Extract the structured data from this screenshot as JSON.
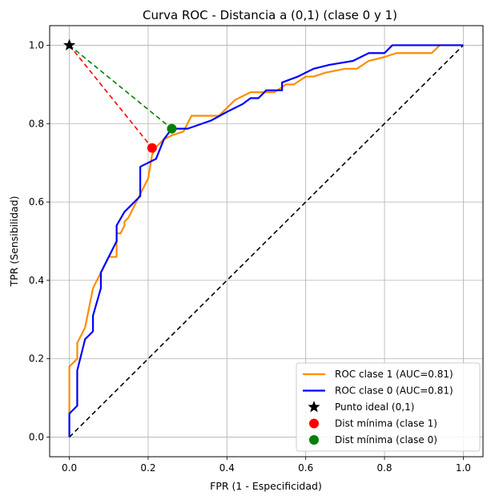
{
  "chart_data": {
    "type": "line",
    "title": "Curva ROC - Distancia a (0,1) (clase 0 y 1)",
    "xlabel": "FPR (1 - Especificidad)",
    "ylabel": "TPR (Sensibilidad)",
    "xlim": [
      -0.05,
      1.05
    ],
    "ylim": [
      -0.05,
      1.05
    ],
    "xticks": [
      "0.0",
      "0.2",
      "0.4",
      "0.6",
      "0.8",
      "1.0"
    ],
    "yticks": [
      "0.0",
      "0.2",
      "0.4",
      "0.6",
      "0.8",
      "1.0"
    ],
    "grid": true,
    "legend_position": "bottom-right",
    "series": [
      {
        "name": "ROC clase 1 (AUC=0.81)",
        "color": "#ff8c00",
        "x": [
          0,
          0,
          0.02,
          0.02,
          0.04,
          0.06,
          0.08,
          0.1,
          0.12,
          0.12,
          0.13,
          0.14,
          0.14,
          0.15,
          0.16,
          0.17,
          0.18,
          0.2,
          0.21,
          0.22,
          0.24,
          0.26,
          0.29,
          0.31,
          0.35,
          0.38,
          0.4,
          0.42,
          0.44,
          0.46,
          0.48,
          0.5,
          0.52,
          0.55,
          0.57,
          0.6,
          0.62,
          0.65,
          0.7,
          0.73,
          0.76,
          0.8,
          0.83,
          0.92,
          0.94,
          1.0
        ],
        "y": [
          0.06,
          0.18,
          0.2,
          0.24,
          0.28,
          0.38,
          0.42,
          0.46,
          0.46,
          0.52,
          0.52,
          0.54,
          0.55,
          0.56,
          0.58,
          0.6,
          0.62,
          0.66,
          0.72,
          0.74,
          0.76,
          0.77,
          0.78,
          0.82,
          0.82,
          0.82,
          0.84,
          0.86,
          0.87,
          0.88,
          0.88,
          0.88,
          0.88,
          0.9,
          0.9,
          0.92,
          0.92,
          0.93,
          0.94,
          0.94,
          0.96,
          0.97,
          0.98,
          0.98,
          1.0,
          1.0
        ]
      },
      {
        "name": "ROC clase 0 (AUC=0.81)",
        "color": "#0000ff",
        "x": [
          0,
          0,
          0.02,
          0.02,
          0.04,
          0.06,
          0.06,
          0.08,
          0.08,
          0.12,
          0.12,
          0.14,
          0.16,
          0.18,
          0.18,
          0.22,
          0.24,
          0.26,
          0.3,
          0.36,
          0.4,
          0.44,
          0.46,
          0.48,
          0.5,
          0.5,
          0.54,
          0.54,
          0.58,
          0.62,
          0.66,
          0.72,
          0.76,
          0.8,
          0.82,
          1.0
        ],
        "y": [
          0.0,
          0.06,
          0.08,
          0.17,
          0.25,
          0.27,
          0.31,
          0.38,
          0.42,
          0.5,
          0.54,
          0.575,
          0.595,
          0.615,
          0.69,
          0.71,
          0.76,
          0.787,
          0.787,
          0.808,
          0.83,
          0.85,
          0.865,
          0.865,
          0.885,
          0.885,
          0.885,
          0.905,
          0.92,
          0.94,
          0.95,
          0.96,
          0.98,
          0.98,
          1.0,
          1.0
        ]
      }
    ],
    "diagonal": {
      "color": "#000000",
      "x": [
        0,
        1
      ],
      "y": [
        0,
        1
      ]
    },
    "points": [
      {
        "name": "Punto ideal (0,1)",
        "x": 0.0,
        "y": 1.0,
        "color": "#000000",
        "marker": "star"
      },
      {
        "name": "Dist mínima (clase 1)",
        "x": 0.21,
        "y": 0.738,
        "color": "#ff0000",
        "marker": "circle"
      },
      {
        "name": "Dist mínima (clase 0)",
        "x": 0.26,
        "y": 0.787,
        "color": "#008000",
        "marker": "circle"
      }
    ],
    "distance_lines": [
      {
        "from": [
          0,
          1
        ],
        "to": [
          0.21,
          0.738
        ],
        "color": "#ff0000"
      },
      {
        "from": [
          0,
          1
        ],
        "to": [
          0.26,
          0.787
        ],
        "color": "#008000"
      }
    ],
    "legend": [
      {
        "label": "ROC clase 1 (AUC=0.81)",
        "kind": "line",
        "color": "#ff8c00"
      },
      {
        "label": "ROC clase 0 (AUC=0.81)",
        "kind": "line",
        "color": "#0000ff"
      },
      {
        "label": "Punto ideal (0,1)",
        "kind": "star",
        "color": "#000000"
      },
      {
        "label": "Dist mínima (clase 1)",
        "kind": "circle",
        "color": "#ff0000"
      },
      {
        "label": "Dist mínima (clase 0)",
        "kind": "circle",
        "color": "#008000"
      }
    ]
  }
}
